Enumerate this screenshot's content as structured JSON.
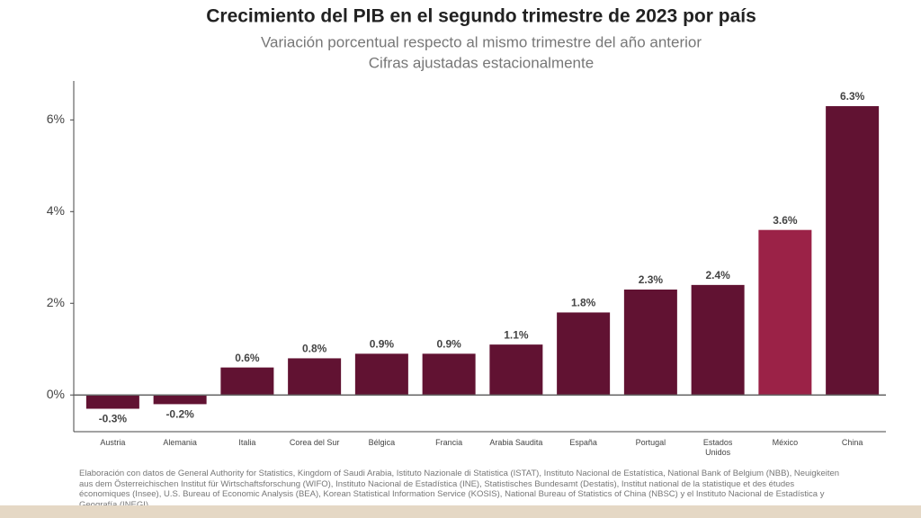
{
  "chart_data": {
    "type": "bar",
    "title": "Crecimiento del PIB en el segundo trimestre de 2023 por país",
    "subtitle": [
      "Variación porcentual respecto al mismo trimestre del año anterior",
      "Cifras ajustadas estacionalmente"
    ],
    "categories": [
      "Austria",
      "Alemania",
      "Italia",
      "Corea del Sur",
      "Bélgica",
      "Francia",
      "Arabia Saudita",
      "España",
      "Portugal",
      "Estados Unidos",
      "México",
      "China"
    ],
    "values": [
      -0.3,
      -0.2,
      0.6,
      0.8,
      0.9,
      0.9,
      1.1,
      1.8,
      2.3,
      2.4,
      3.6,
      6.3
    ],
    "value_labels": [
      "-0.3%",
      "-0.2%",
      "0.6%",
      "0.8%",
      "0.9%",
      "0.9%",
      "1.1%",
      "1.8%",
      "2.3%",
      "2.4%",
      "3.6%",
      "6.3%"
    ],
    "colors": [
      "#611232",
      "#611232",
      "#611232",
      "#611232",
      "#611232",
      "#611232",
      "#611232",
      "#611232",
      "#611232",
      "#611232",
      "#9b2247",
      "#611232"
    ],
    "ylim": [
      -0.8,
      6.85
    ],
    "yticks": [
      {
        "value": 0,
        "label": "0%"
      },
      {
        "value": 2,
        "label": "2%"
      },
      {
        "value": 4,
        "label": "4%"
      },
      {
        "value": 6,
        "label": "6%"
      }
    ],
    "source": "Elaboración con datos de General Authority for Statistics, Kingdom of Saudi Arabia, Istituto Nazionale di Statistica (ISTAT), Instituto Nacional de Estatística, National Bank of Belgium (NBB), Neuigkeiten aus dem Österreichischen Institut für Wirtschaftsforschung (WIFO), Instituto Nacional de Estadística (INE), Statistisches Bundesamt (Destatis), Institut national de la statistique et des études économiques (Insee), U.S. Bureau of Economic Analysis (BEA), Korean Statistical Information Service (KOSIS), National Bureau of Statistics of China (NBSC) y el Instituto Nacional de Estadística y Geografía (INEGI)."
  }
}
